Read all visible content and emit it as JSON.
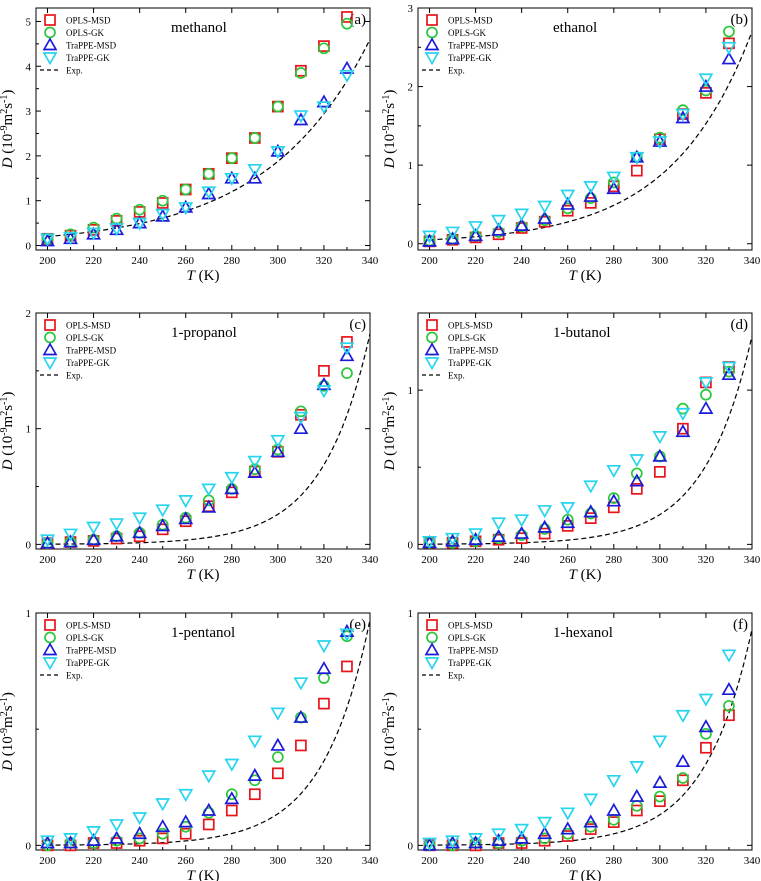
{
  "figure": {
    "colors": {
      "OPLS-MSD": "#e8141b",
      "OPLS-GK": "#2ac83a",
      "TraPPE-MSD": "#1b1bdc",
      "TraPPE-GK": "#27d4ee",
      "Exp.": "#000000"
    },
    "markers": {
      "OPLS-MSD": "square",
      "OPLS-GK": "circle",
      "TraPPE-MSD": "triangle-up",
      "TraPPE-GK": "triangle-down",
      "Exp.": "dash"
    }
  },
  "chart_data": [
    {
      "id": "a",
      "type": "scatter",
      "tag": "(a)",
      "title": "methanol",
      "xlabel_italic": "T",
      "xlabel_unit": " (K)",
      "ylabel_italic": "D",
      "ylabel_unit": " (10",
      "ylabel_exp": "-9",
      "ylabel_tail": "m",
      "ylabel_exp2": "2",
      "ylabel_tail2": "s",
      "ylabel_exp3": "-1",
      "ylabel_close": ")",
      "xlim": [
        195,
        340
      ],
      "ylim": [
        -0.1,
        5.3
      ],
      "xticks": [
        "200",
        "220",
        "240",
        "260",
        "280",
        "300",
        "320",
        "340"
      ],
      "yticks": [
        "0",
        "1",
        "2",
        "3",
        "4",
        "5"
      ],
      "x": [
        200,
        210,
        220,
        230,
        240,
        250,
        260,
        270,
        280,
        290,
        300,
        310,
        320,
        330
      ],
      "series": [
        {
          "name": "OPLS-MSD",
          "values": [
            0.15,
            0.22,
            0.35,
            0.55,
            0.75,
            0.95,
            1.25,
            1.6,
            1.95,
            2.4,
            3.1,
            3.9,
            4.45,
            5.1
          ]
        },
        {
          "name": "OPLS-GK",
          "values": [
            0.15,
            0.25,
            0.4,
            0.6,
            0.8,
            1.0,
            1.25,
            1.6,
            1.95,
            2.4,
            3.1,
            3.85,
            4.4,
            4.95
          ]
        },
        {
          "name": "TraPPE-MSD",
          "values": [
            0.1,
            0.15,
            0.25,
            0.35,
            0.5,
            0.65,
            0.85,
            1.15,
            1.5,
            1.5,
            2.1,
            2.8,
            3.2,
            3.95
          ]
        },
        {
          "name": "TraPPE-GK",
          "values": [
            0.15,
            0.18,
            0.28,
            0.38,
            0.5,
            0.7,
            0.85,
            1.2,
            1.5,
            1.7,
            2.1,
            2.9,
            3.1,
            3.8
          ]
        }
      ],
      "exp": {
        "name": "Exp.",
        "y_at_200": 0.2,
        "y_at_340": 4.6
      },
      "legend": [
        "OPLS-MSD",
        "OPLS-GK",
        "TraPPE-MSD",
        "TraPPE-GK",
        "Exp."
      ]
    },
    {
      "id": "b",
      "type": "scatter",
      "tag": "(b)",
      "title": "ethanol",
      "xlabel_italic": "T",
      "xlabel_unit": " (K)",
      "ylabel_italic": "D",
      "ylabel_unit": " (10",
      "ylabel_exp": "-9",
      "ylabel_tail": "m",
      "ylabel_exp2": "2",
      "ylabel_tail2": "s",
      "ylabel_exp3": "-1",
      "ylabel_close": ")",
      "xlim": [
        195,
        340
      ],
      "ylim": [
        -0.08,
        3.0
      ],
      "xticks": [
        "200",
        "220",
        "240",
        "260",
        "280",
        "300",
        "320",
        "340"
      ],
      "yticks": [
        "0",
        "1",
        "2",
        "3"
      ],
      "x": [
        200,
        210,
        220,
        230,
        240,
        250,
        260,
        270,
        280,
        290,
        300,
        310,
        320,
        330
      ],
      "series": [
        {
          "name": "OPLS-MSD",
          "values": [
            0.03,
            0.05,
            0.08,
            0.12,
            0.2,
            0.28,
            0.42,
            0.52,
            0.73,
            0.93,
            1.33,
            1.65,
            1.92,
            2.55
          ]
        },
        {
          "name": "OPLS-GK",
          "values": [
            0.04,
            0.06,
            0.1,
            0.15,
            0.22,
            0.3,
            0.45,
            0.58,
            0.78,
            1.1,
            1.35,
            1.7,
            1.95,
            2.7
          ]
        },
        {
          "name": "TraPPE-MSD",
          "values": [
            0.03,
            0.06,
            0.1,
            0.17,
            0.23,
            0.32,
            0.5,
            0.6,
            0.7,
            1.1,
            1.3,
            1.6,
            2.0,
            2.35
          ]
        },
        {
          "name": "TraPPE-GK",
          "values": [
            0.1,
            0.15,
            0.22,
            0.3,
            0.38,
            0.48,
            0.62,
            0.73,
            0.85,
            1.1,
            1.3,
            1.65,
            2.1,
            2.5
          ]
        }
      ],
      "exp": {
        "name": "Exp.",
        "y_at_200": 0.05,
        "y_at_340": 2.7
      },
      "legend": [
        "OPLS-MSD",
        "OPLS-GK",
        "TraPPE-MSD",
        "TraPPE-GK",
        "Exp."
      ]
    },
    {
      "id": "c",
      "type": "scatter",
      "tag": "(c)",
      "title": "1-propanol",
      "xlabel_italic": "T",
      "xlabel_unit": " (K)",
      "ylabel_italic": "D",
      "ylabel_unit": " (10",
      "ylabel_exp": "-9",
      "ylabel_tail": "m",
      "ylabel_exp2": "2",
      "ylabel_tail2": "s",
      "ylabel_exp3": "-1",
      "ylabel_close": ")",
      "xlim": [
        195,
        340
      ],
      "ylim": [
        -0.04,
        2.0
      ],
      "xticks": [
        "200",
        "220",
        "240",
        "260",
        "280",
        "300",
        "320",
        "340"
      ],
      "yticks": [
        "0",
        "1",
        "2"
      ],
      "x": [
        200,
        210,
        220,
        230,
        240,
        250,
        260,
        270,
        280,
        290,
        300,
        310,
        320,
        330
      ],
      "series": [
        {
          "name": "OPLS-MSD",
          "values": [
            0.01,
            0.02,
            0.03,
            0.05,
            0.07,
            0.13,
            0.2,
            0.33,
            0.45,
            0.63,
            0.8,
            1.12,
            1.5,
            1.75
          ]
        },
        {
          "name": "OPLS-GK",
          "values": [
            0.01,
            0.02,
            0.04,
            0.07,
            0.1,
            0.17,
            0.23,
            0.38,
            0.48,
            0.65,
            0.82,
            1.15,
            1.37,
            1.48
          ]
        },
        {
          "name": "TraPPE-MSD",
          "values": [
            0.01,
            0.02,
            0.04,
            0.07,
            0.1,
            0.16,
            0.22,
            0.32,
            0.48,
            0.62,
            0.8,
            1.0,
            1.38,
            1.63
          ]
        },
        {
          "name": "TraPPE-GK",
          "values": [
            0.04,
            0.09,
            0.15,
            0.18,
            0.23,
            0.3,
            0.38,
            0.48,
            0.58,
            0.72,
            0.9,
            1.1,
            1.33,
            1.7
          ]
        }
      ],
      "exp": {
        "name": "Exp.",
        "y_at_200": 0.0,
        "y_at_340": 1.82
      },
      "legend": [
        "OPLS-MSD",
        "OPLS-GK",
        "TraPPE-MSD",
        "TraPPE-GK",
        "Exp."
      ]
    },
    {
      "id": "d",
      "type": "scatter",
      "tag": "(d)",
      "title": "1-butanol",
      "xlabel_italic": "T",
      "xlabel_unit": " (K)",
      "ylabel_italic": "D",
      "ylabel_unit": " (10",
      "ylabel_exp": "-9",
      "ylabel_tail": "m",
      "ylabel_exp2": "2",
      "ylabel_tail2": "s",
      "ylabel_exp3": "-1",
      "ylabel_close": ")",
      "xlim": [
        195,
        340
      ],
      "ylim": [
        -0.03,
        1.5
      ],
      "xticks": [
        "200",
        "220",
        "240",
        "260",
        "280",
        "300",
        "320",
        "340"
      ],
      "yticks": [
        "0",
        "1"
      ],
      "x": [
        200,
        210,
        220,
        230,
        240,
        250,
        260,
        270,
        280,
        290,
        300,
        310,
        320,
        330
      ],
      "series": [
        {
          "name": "OPLS-MSD",
          "values": [
            0.01,
            0.01,
            0.02,
            0.03,
            0.04,
            0.07,
            0.12,
            0.17,
            0.24,
            0.36,
            0.47,
            0.75,
            1.05,
            1.15
          ]
        },
        {
          "name": "OPLS-GK",
          "values": [
            0.01,
            0.01,
            0.02,
            0.04,
            0.06,
            0.1,
            0.16,
            0.2,
            0.3,
            0.46,
            0.57,
            0.88,
            0.97,
            1.12
          ]
        },
        {
          "name": "TraPPE-MSD",
          "values": [
            0.01,
            0.02,
            0.03,
            0.05,
            0.07,
            0.11,
            0.14,
            0.21,
            0.28,
            0.41,
            0.57,
            0.73,
            0.88,
            1.1
          ]
        },
        {
          "name": "TraPPE-GK",
          "values": [
            0.02,
            0.04,
            0.07,
            0.14,
            0.16,
            0.22,
            0.24,
            0.38,
            0.48,
            0.55,
            0.7,
            0.85,
            1.05,
            1.15
          ]
        }
      ],
      "exp": {
        "name": "Exp.",
        "y_at_200": 0.0,
        "y_at_340": 1.35
      },
      "legend": [
        "OPLS-MSD",
        "OPLS-GK",
        "TraPPE-MSD",
        "TraPPE-GK",
        "Exp."
      ]
    },
    {
      "id": "e",
      "type": "scatter",
      "tag": "(e)",
      "title": "1-pentanol",
      "xlabel_italic": "T",
      "xlabel_unit": " (K)",
      "ylabel_italic": "D",
      "ylabel_unit": " (10",
      "ylabel_exp": "-9",
      "ylabel_tail": "m",
      "ylabel_exp2": "2",
      "ylabel_tail2": "s",
      "ylabel_exp3": "-1",
      "ylabel_close": ")",
      "xlim": [
        195,
        340
      ],
      "ylim": [
        -0.02,
        1.0
      ],
      "xticks": [
        "200",
        "220",
        "240",
        "260",
        "280",
        "300",
        "320",
        "340"
      ],
      "yticks": [
        "0",
        "1"
      ],
      "x": [
        200,
        210,
        220,
        230,
        240,
        250,
        260,
        270,
        280,
        290,
        300,
        310,
        320,
        330
      ],
      "series": [
        {
          "name": "OPLS-MSD",
          "values": [
            0.0,
            0.0,
            0.01,
            0.01,
            0.02,
            0.03,
            0.05,
            0.09,
            0.15,
            0.22,
            0.31,
            0.43,
            0.61,
            0.77
          ]
        },
        {
          "name": "OPLS-GK",
          "values": [
            0.0,
            0.01,
            0.01,
            0.02,
            0.03,
            0.05,
            0.08,
            0.14,
            0.22,
            0.28,
            0.38,
            0.55,
            0.72,
            0.9
          ]
        },
        {
          "name": "TraPPE-MSD",
          "values": [
            0.01,
            0.01,
            0.02,
            0.03,
            0.05,
            0.08,
            0.1,
            0.15,
            0.2,
            0.3,
            0.43,
            0.55,
            0.76,
            0.92
          ]
        },
        {
          "name": "TraPPE-GK",
          "values": [
            0.02,
            0.03,
            0.06,
            0.09,
            0.12,
            0.18,
            0.22,
            0.3,
            0.35,
            0.45,
            0.57,
            0.7,
            0.86,
            0.91
          ]
        }
      ],
      "exp": {
        "name": "Exp.",
        "y_at_200": 0.0,
        "y_at_340": 0.97
      },
      "legend": [
        "OPLS-MSD",
        "OPLS-GK",
        "TraPPE-MSD",
        "TraPPE-GK",
        "Exp."
      ]
    },
    {
      "id": "f",
      "type": "scatter",
      "tag": "(f)",
      "title": "1-hexanol",
      "xlabel_italic": "T",
      "xlabel_unit": " (K)",
      "ylabel_italic": "D",
      "ylabel_unit": " (10",
      "ylabel_exp": "-9",
      "ylabel_tail": "m",
      "ylabel_exp2": "2",
      "ylabel_tail2": "s",
      "ylabel_exp3": "-1",
      "ylabel_close": ")",
      "xlim": [
        195,
        340
      ],
      "ylim": [
        -0.02,
        1.0
      ],
      "xticks": [
        "200",
        "220",
        "240",
        "260",
        "280",
        "300",
        "320",
        "340"
      ],
      "yticks": [
        "0",
        "1"
      ],
      "x": [
        200,
        210,
        220,
        230,
        240,
        250,
        260,
        270,
        280,
        290,
        300,
        310,
        320,
        330
      ],
      "series": [
        {
          "name": "OPLS-MSD",
          "values": [
            0.0,
            0.0,
            0.0,
            0.01,
            0.01,
            0.02,
            0.04,
            0.07,
            0.1,
            0.15,
            0.19,
            0.28,
            0.42,
            0.56
          ]
        },
        {
          "name": "OPLS-GK",
          "values": [
            0.0,
            0.0,
            0.01,
            0.01,
            0.02,
            0.03,
            0.05,
            0.08,
            0.11,
            0.17,
            0.21,
            0.29,
            0.48,
            0.6
          ]
        },
        {
          "name": "TraPPE-MSD",
          "values": [
            0.0,
            0.01,
            0.01,
            0.02,
            0.03,
            0.05,
            0.07,
            0.1,
            0.15,
            0.21,
            0.27,
            0.36,
            0.51,
            0.67
          ]
        },
        {
          "name": "TraPPE-GK",
          "values": [
            0.01,
            0.02,
            0.03,
            0.05,
            0.07,
            0.1,
            0.14,
            0.2,
            0.28,
            0.34,
            0.45,
            0.56,
            0.63,
            0.82
          ]
        }
      ],
      "exp": {
        "name": "Exp.",
        "y_at_200": 0.0,
        "y_at_340": 0.93
      },
      "legend": [
        "OPLS-MSD",
        "OPLS-GK",
        "TraPPE-MSD",
        "TraPPE-GK",
        "Exp."
      ]
    }
  ]
}
